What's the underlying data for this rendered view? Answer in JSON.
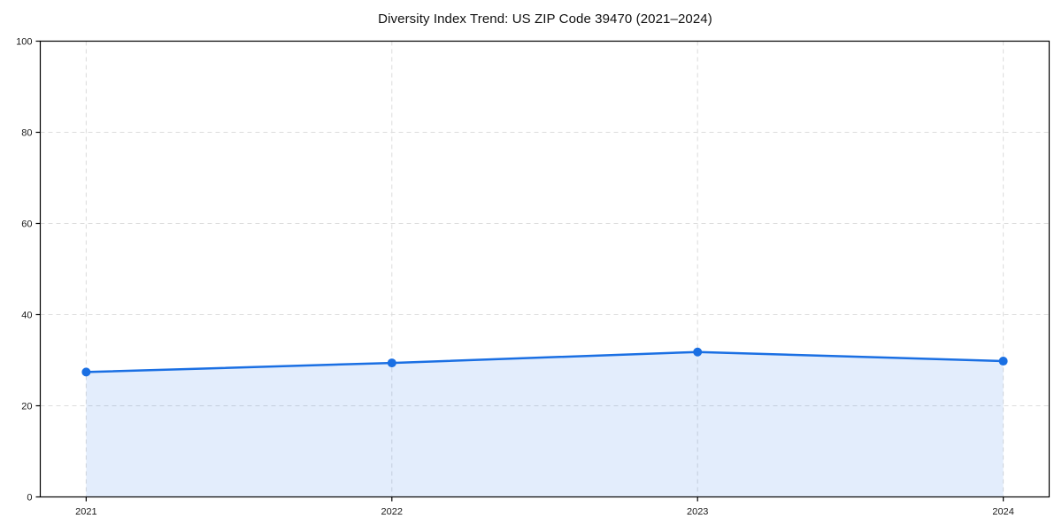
{
  "figure": {
    "background": "#ffffff"
  },
  "chart_data": {
    "type": "area",
    "title": "Diversity Index Trend: US ZIP Code 39470 (2021–2024)",
    "categories": [
      "2021",
      "2022",
      "2023",
      "2024"
    ],
    "series": [
      {
        "name": "Diversity Index",
        "values": [
          27.4,
          29.4,
          31.8,
          29.8
        ]
      }
    ],
    "xlabel": "",
    "ylabel": "",
    "ylim": [
      0,
      100
    ],
    "yticks": [
      0,
      20,
      40,
      60,
      80,
      100
    ],
    "grid": true,
    "grid_style": "dashed",
    "legend_position": "none",
    "colors": {
      "line": "#1a6fe3",
      "marker": "#1a6fe3",
      "fill": "rgba(26, 111, 227, 0.12)",
      "grid": "#dcdcdc",
      "spine": "#000000",
      "tick_label": "#1a1a1a",
      "title": "#111111",
      "background": "#ffffff"
    }
  }
}
